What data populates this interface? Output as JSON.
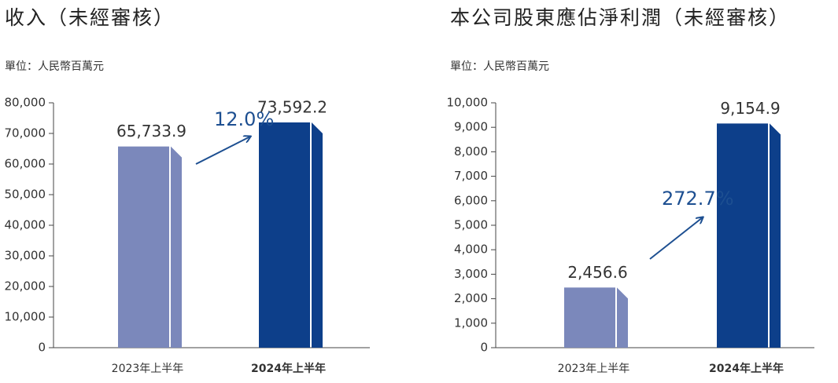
{
  "chart_data": [
    {
      "type": "bar",
      "title": "收入（未經審核）",
      "subtitle": "單位：人民幣百萬元",
      "categories": [
        "2023年上半年",
        "2024年上半年"
      ],
      "values": [
        65733.9,
        73592.2
      ],
      "value_labels": [
        "65,733.9",
        "73,592.2"
      ],
      "colors": [
        "#7b88bb",
        "#0d3f8a"
      ],
      "annotation": "12.0%",
      "ylim": [
        0,
        80000
      ],
      "yticks": [
        0,
        {
          "value": 10000,
          "label": "10,000"
        },
        {
          "value": 20000,
          "label": "20,000"
        },
        {
          "value": 30000,
          "label": "30,000"
        },
        {
          "value": 40000,
          "label": "40,000"
        },
        {
          "value": 50000,
          "label": "50,000"
        },
        {
          "value": 60000,
          "label": "60,000"
        },
        {
          "value": 70000,
          "label": "70,000"
        },
        {
          "value": 80000,
          "label": "80,000"
        }
      ]
    },
    {
      "type": "bar",
      "title": "本公司股東應佔淨利潤（未經審核）",
      "subtitle": "單位：人民幣百萬元",
      "categories": [
        "2023年上半年",
        "2024年上半年"
      ],
      "values": [
        2456.6,
        9154.9
      ],
      "value_labels": [
        "2,456.6",
        "9,154.9"
      ],
      "colors": [
        "#7b88bb",
        "#0d3f8a"
      ],
      "annotation": "272.7%",
      "ylim": [
        0,
        10000
      ],
      "yticks": [
        0,
        {
          "value": 1000,
          "label": "1,000"
        },
        {
          "value": 2000,
          "label": "2,000"
        },
        {
          "value": 3000,
          "label": "3,000"
        },
        {
          "value": 4000,
          "label": "4,000"
        },
        {
          "value": 5000,
          "label": "5,000"
        },
        {
          "value": 6000,
          "label": "6,000"
        },
        {
          "value": 7000,
          "label": "7,000"
        },
        {
          "value": 8000,
          "label": "8,000"
        },
        {
          "value": 9000,
          "label": "9,000"
        },
        {
          "value": 10000,
          "label": "10,000"
        }
      ]
    }
  ]
}
